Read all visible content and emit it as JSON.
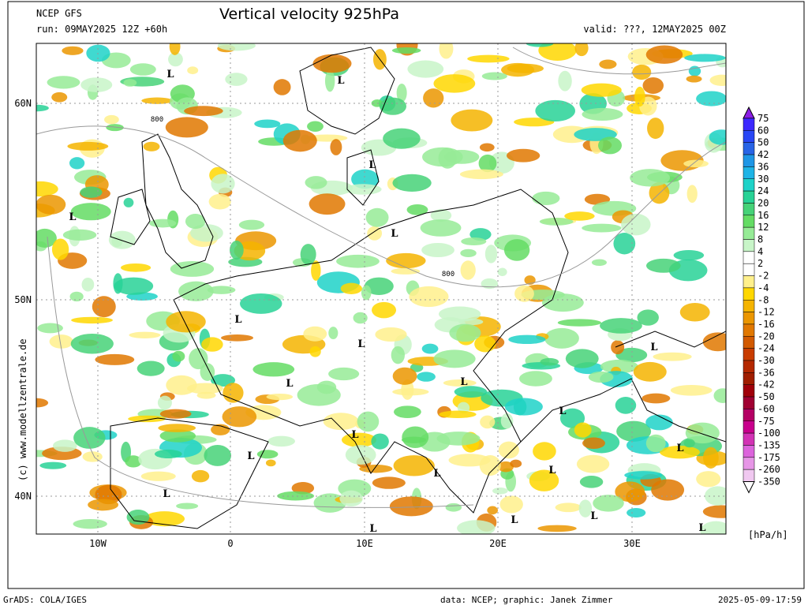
{
  "header": {
    "model": "NCEP GFS",
    "run": "run: 09MAY2025 12Z +60h",
    "title": "Vertical velocity 925hPa",
    "valid": "valid: ???, 12MAY2025 00Z"
  },
  "map": {
    "lat_labels": [
      "60N",
      "50N",
      "40N"
    ],
    "lon_labels": [
      "10W",
      "0",
      "10E",
      "20E",
      "30E"
    ],
    "lows": [
      "L",
      "L",
      "L",
      "L",
      "L",
      "L",
      "L",
      "L",
      "L",
      "L",
      "L",
      "L",
      "L",
      "L",
      "L",
      "L",
      "L",
      "L",
      "L",
      "L",
      "L"
    ],
    "contour_labels": [
      "800",
      "800"
    ],
    "credit": "(c)  www.modellzentrale.de"
  },
  "colorbar": {
    "labels": [
      "75",
      "60",
      "50",
      "42",
      "36",
      "30",
      "24",
      "20",
      "16",
      "12",
      "8",
      "4",
      "2",
      "-2",
      "-4",
      "-8",
      "-12",
      "-16",
      "-20",
      "-24",
      "-30",
      "-36",
      "-42",
      "-50",
      "-60",
      "-75",
      "-100",
      "-135",
      "-175",
      "-260",
      "-350"
    ],
    "colors": [
      "#8c1ee6",
      "#3c28ff",
      "#2846f5",
      "#2864e6",
      "#1e96e6",
      "#1eb4e6",
      "#1ed2c8",
      "#28d296",
      "#46d278",
      "#64dc64",
      "#96eb96",
      "#c8f5c8",
      "#ffffff",
      "#ffffff",
      "#fff08c",
      "#ffd700",
      "#f5b400",
      "#eb9600",
      "#e17800",
      "#d25a00",
      "#c83c00",
      "#b42800",
      "#a01e00",
      "#a0000a",
      "#a00032",
      "#b40064",
      "#c8008c",
      "#d232b4",
      "#dc64dc",
      "#e696e6",
      "#f0c8f0",
      "#ffffff"
    ],
    "unit": "[hPa/h]"
  },
  "footer": {
    "software": "GrADS: COLA/IGES",
    "source": "data: NCEP; graphic: Janek Zimmer",
    "timestamp": "2025-05-09-17:59"
  }
}
